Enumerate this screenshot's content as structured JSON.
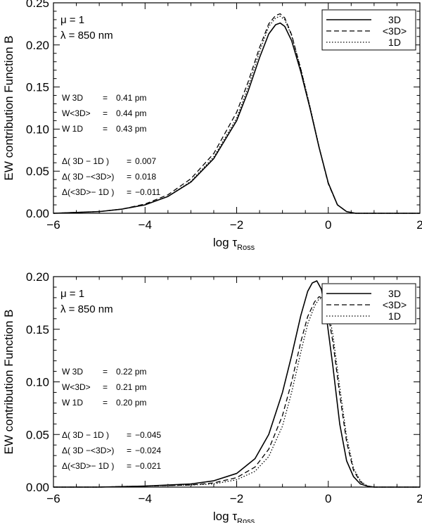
{
  "chart_data": [
    {
      "type": "line",
      "id": "top",
      "xlabel": "log τ",
      "xlabel_sub": "Ross",
      "ylabel": "EW contribution Function B",
      "xlim": [
        -6,
        2
      ],
      "ylim": [
        0,
        0.25
      ],
      "xticks": [
        -6,
        -4,
        -2,
        0,
        2
      ],
      "xtick_labels": [
        "−6",
        "−4",
        "−2",
        "0",
        "2"
      ],
      "yticks": [
        0,
        0.05,
        0.1,
        0.15,
        0.2,
        0.25
      ],
      "ytick_labels": [
        "0.00",
        "0.05",
        "0.10",
        "0.15",
        "0.20",
        "0.25"
      ],
      "params": [
        "μ = 1",
        "λ = 850 nm"
      ],
      "ew_rows": [
        {
          "label": "W 3D",
          "eq": "=",
          "value": "0.41 pm"
        },
        {
          "label": "W<3D>",
          "eq": "=",
          "value": "0.44 pm"
        },
        {
          "label": "W 1D",
          "eq": "=",
          "value": "0.43 pm"
        }
      ],
      "delta_rows": [
        {
          "label": "Δ( 3D − 1D )",
          "eq": "=",
          "value": "0.007"
        },
        {
          "label": "Δ( 3D −<3D>)",
          "eq": "=",
          "value": "0.018"
        },
        {
          "label": "Δ(<3D>− 1D )",
          "eq": "=",
          "value": "−0.011"
        }
      ],
      "legend": [
        "3D",
        "<3D>",
        "1D"
      ],
      "series": [
        {
          "name": "3D",
          "style": "solid",
          "x": [
            -6.0,
            -5.5,
            -5.0,
            -4.5,
            -4.0,
            -3.5,
            -3.0,
            -2.5,
            -2.0,
            -1.75,
            -1.5,
            -1.3,
            -1.15,
            -1.05,
            -0.95,
            -0.8,
            -0.6,
            -0.4,
            -0.2,
            0.0,
            0.2,
            0.4,
            0.6,
            1.0,
            2.0
          ],
          "y": [
            0.0,
            0.001,
            0.002,
            0.005,
            0.01,
            0.02,
            0.037,
            0.065,
            0.11,
            0.145,
            0.185,
            0.213,
            0.224,
            0.226,
            0.222,
            0.205,
            0.168,
            0.125,
            0.078,
            0.036,
            0.01,
            0.002,
            0.0,
            0.0,
            0.0
          ]
        },
        {
          "name": "<3D>",
          "style": "dashed",
          "x": [
            -6.0,
            -5.5,
            -5.0,
            -4.5,
            -4.0,
            -3.5,
            -3.0,
            -2.5,
            -2.0,
            -1.75,
            -1.5,
            -1.3,
            -1.15,
            -1.05,
            -0.95,
            -0.8,
            -0.6,
            -0.4,
            -0.2,
            0.0,
            0.2,
            0.4,
            0.6,
            1.0,
            2.0
          ],
          "y": [
            0.0,
            0.001,
            0.002,
            0.005,
            0.011,
            0.022,
            0.041,
            0.071,
            0.12,
            0.156,
            0.197,
            0.225,
            0.235,
            0.237,
            0.232,
            0.212,
            0.171,
            0.126,
            0.078,
            0.035,
            0.01,
            0.002,
            0.0,
            0.0,
            0.0
          ]
        },
        {
          "name": "1D",
          "style": "dotted",
          "x": [
            -6.0,
            -5.5,
            -5.0,
            -4.5,
            -4.0,
            -3.5,
            -3.0,
            -2.5,
            -2.0,
            -1.75,
            -1.5,
            -1.3,
            -1.15,
            -1.05,
            -0.95,
            -0.8,
            -0.6,
            -0.4,
            -0.2,
            0.0,
            0.2,
            0.4,
            0.6,
            1.0,
            2.0
          ],
          "y": [
            0.0,
            0.001,
            0.002,
            0.005,
            0.01,
            0.02,
            0.038,
            0.067,
            0.113,
            0.15,
            0.192,
            0.222,
            0.232,
            0.234,
            0.23,
            0.211,
            0.172,
            0.127,
            0.079,
            0.036,
            0.01,
            0.002,
            0.0,
            0.0,
            0.0
          ]
        }
      ]
    },
    {
      "type": "line",
      "id": "bottom",
      "xlabel": "log τ",
      "xlabel_sub": "Ross",
      "ylabel": "EW contribution Function B",
      "xlim": [
        -6,
        2
      ],
      "ylim": [
        0,
        0.2
      ],
      "xticks": [
        -6,
        -4,
        -2,
        0,
        2
      ],
      "xtick_labels": [
        "−6",
        "−4",
        "−2",
        "0",
        "2"
      ],
      "yticks": [
        0,
        0.05,
        0.1,
        0.15,
        0.2
      ],
      "ytick_labels": [
        "0.00",
        "0.05",
        "0.10",
        "0.15",
        "0.20"
      ],
      "params": [
        "μ = 1",
        "λ = 850 nm"
      ],
      "ew_rows": [
        {
          "label": "W 3D",
          "eq": "=",
          "value": "0.22 pm"
        },
        {
          "label": "W<3D>",
          "eq": "=",
          "value": "0.21 pm"
        },
        {
          "label": "W 1D",
          "eq": "=",
          "value": "0.20 pm"
        }
      ],
      "delta_rows": [
        {
          "label": "Δ( 3D − 1D )",
          "eq": "=",
          "value": "−0.045"
        },
        {
          "label": "Δ( 3D −<3D>)",
          "eq": "=",
          "value": "−0.024"
        },
        {
          "label": "Δ(<3D>− 1D )",
          "eq": "=",
          "value": "−0.021"
        }
      ],
      "legend": [
        "3D",
        "<3D>",
        "1D"
      ],
      "series": [
        {
          "name": "3D",
          "style": "solid",
          "x": [
            -6.0,
            -5.0,
            -4.0,
            -3.0,
            -2.5,
            -2.0,
            -1.6,
            -1.3,
            -1.0,
            -0.8,
            -0.6,
            -0.45,
            -0.35,
            -0.25,
            -0.15,
            -0.05,
            0.1,
            0.25,
            0.4,
            0.55,
            0.7,
            0.85,
            1.0,
            1.5,
            2.0
          ],
          "y": [
            0.0,
            0.0,
            0.001,
            0.003,
            0.006,
            0.013,
            0.027,
            0.05,
            0.09,
            0.125,
            0.163,
            0.186,
            0.194,
            0.196,
            0.188,
            0.165,
            0.115,
            0.06,
            0.025,
            0.01,
            0.003,
            0.001,
            0.0,
            0.0,
            0.0
          ]
        },
        {
          "name": "<3D>",
          "style": "dashed",
          "x": [
            -6.0,
            -5.0,
            -4.0,
            -3.0,
            -2.5,
            -2.0,
            -1.6,
            -1.3,
            -1.0,
            -0.8,
            -0.6,
            -0.45,
            -0.3,
            -0.2,
            -0.1,
            0.0,
            0.1,
            0.25,
            0.4,
            0.55,
            0.7,
            0.85,
            1.0,
            1.5,
            2.0
          ],
          "y": [
            0.0,
            0.0,
            0.001,
            0.002,
            0.004,
            0.009,
            0.019,
            0.036,
            0.068,
            0.1,
            0.138,
            0.162,
            0.176,
            0.181,
            0.179,
            0.163,
            0.138,
            0.088,
            0.043,
            0.016,
            0.005,
            0.001,
            0.0,
            0.0,
            0.0
          ]
        },
        {
          "name": "1D",
          "style": "dotted",
          "x": [
            -6.0,
            -5.0,
            -4.0,
            -3.0,
            -2.5,
            -2.0,
            -1.6,
            -1.3,
            -1.0,
            -0.8,
            -0.6,
            -0.45,
            -0.3,
            -0.2,
            -0.1,
            0.0,
            0.1,
            0.25,
            0.4,
            0.55,
            0.7,
            0.85,
            1.0,
            1.5,
            2.0
          ],
          "y": [
            0.0,
            0.0,
            0.001,
            0.002,
            0.003,
            0.007,
            0.015,
            0.029,
            0.058,
            0.09,
            0.128,
            0.155,
            0.172,
            0.179,
            0.179,
            0.168,
            0.145,
            0.095,
            0.048,
            0.018,
            0.006,
            0.001,
            0.0,
            0.0,
            0.0
          ]
        }
      ]
    }
  ]
}
